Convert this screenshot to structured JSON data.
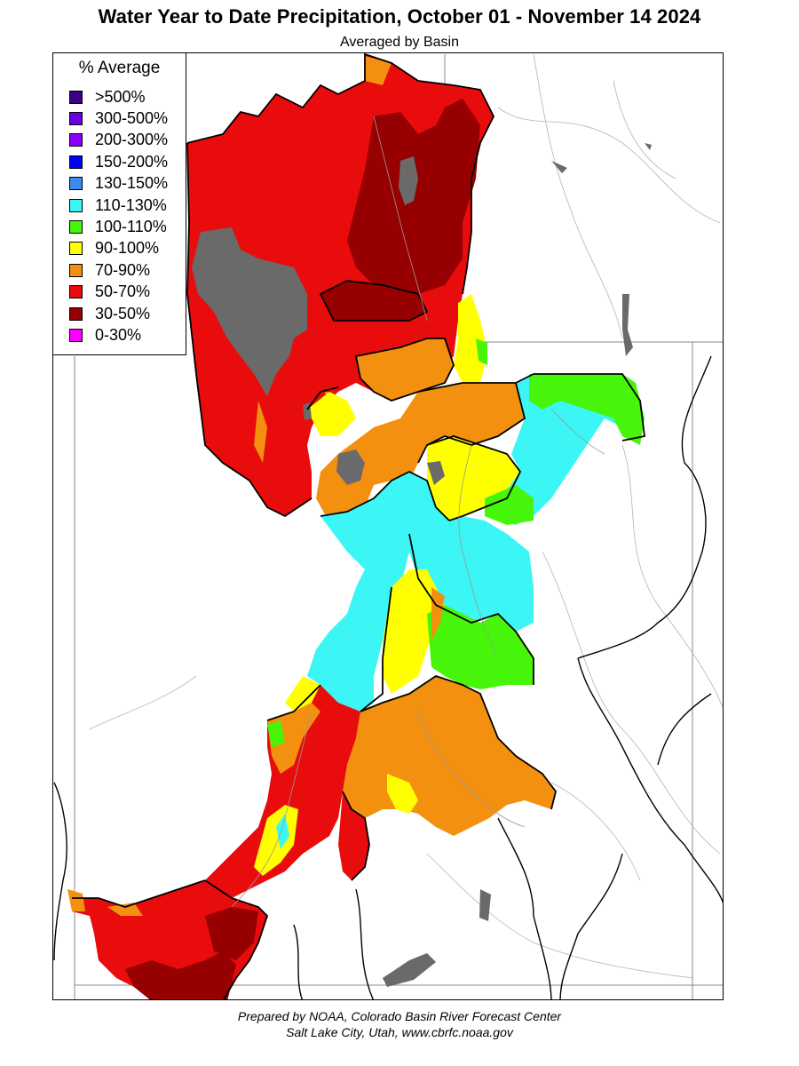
{
  "title": "Water Year to Date Precipitation, October 01  - November 14 2024",
  "subtitle": "Averaged by Basin",
  "legend": {
    "title": "% Average",
    "items": [
      {
        "label": ">500%",
        "color": "#3d0087"
      },
      {
        "label": "300-500%",
        "color": "#6a00e0"
      },
      {
        "label": "200-300%",
        "color": "#8a00ff"
      },
      {
        "label": "150-200%",
        "color": "#0000ff"
      },
      {
        "label": "130-150%",
        "color": "#3c8cf0"
      },
      {
        "label": "110-130%",
        "color": "#3cf5f5"
      },
      {
        "label": "100-110%",
        "color": "#46f50a"
      },
      {
        "label": "90-100%",
        "color": "#ffff00"
      },
      {
        "label": "70-90%",
        "color": "#f49010"
      },
      {
        "label": "50-70%",
        "color": "#e80c0c"
      },
      {
        "label": "30-50%",
        "color": "#960000"
      },
      {
        "label": "0-30%",
        "color": "#ff00ff"
      }
    ]
  },
  "map": {
    "lake_color": "#6a6a6a",
    "boundary_color": "#000000",
    "river_color": "#a0a0a0"
  },
  "footer": {
    "line1": "Prepared by NOAA, Colorado Basin River Forecast Center",
    "line2": "Salt Lake City, Utah, www.cbrfc.noaa.gov"
  }
}
